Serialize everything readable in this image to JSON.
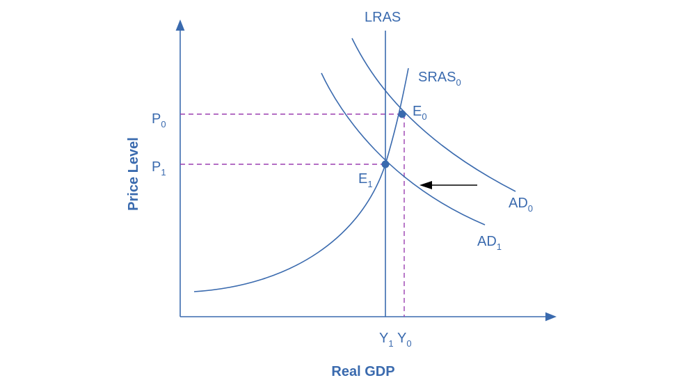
{
  "axes": {
    "y_label": "Price Level",
    "x_label": "Real GDP"
  },
  "curves": {
    "lras": "LRAS",
    "sras": {
      "main": "SRAS",
      "sub": "0"
    },
    "ad0": {
      "main": "AD",
      "sub": "0"
    },
    "ad1": {
      "main": "AD",
      "sub": "1"
    }
  },
  "points": {
    "e0": {
      "main": "E",
      "sub": "0"
    },
    "e1": {
      "main": "E",
      "sub": "1"
    }
  },
  "y_ticks": {
    "p0": {
      "main": "P",
      "sub": "0"
    },
    "p1": {
      "main": "P",
      "sub": "1"
    }
  },
  "x_ticks": {
    "y1": {
      "main": "Y",
      "sub": "1"
    },
    "y0": {
      "main": "Y",
      "sub": "0"
    }
  },
  "colors": {
    "curves": "#3a6aae",
    "guides": "#9b3fb0",
    "arrow": "#000000"
  }
}
